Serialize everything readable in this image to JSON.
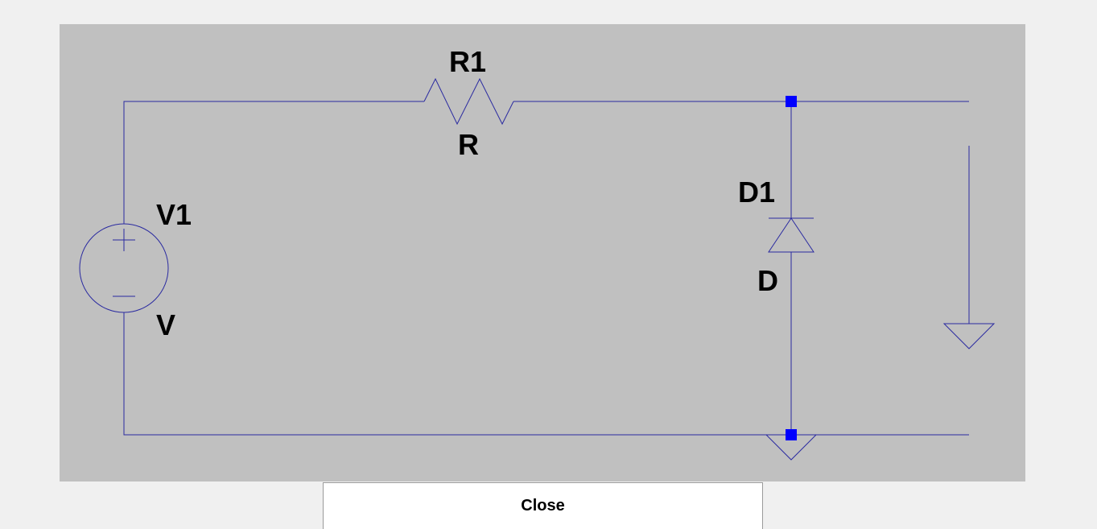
{
  "schematic": {
    "components": {
      "voltage_source": {
        "name": "V1",
        "value": "V"
      },
      "resistor": {
        "name": "R1",
        "value": "R"
      },
      "diode": {
        "name": "D1",
        "value": "D"
      }
    }
  },
  "colors": {
    "panel_background": "#c0c0c0",
    "wire": "#2a2aa0",
    "junction": "#0000ff",
    "label": "#000000"
  },
  "close_label": "Close"
}
